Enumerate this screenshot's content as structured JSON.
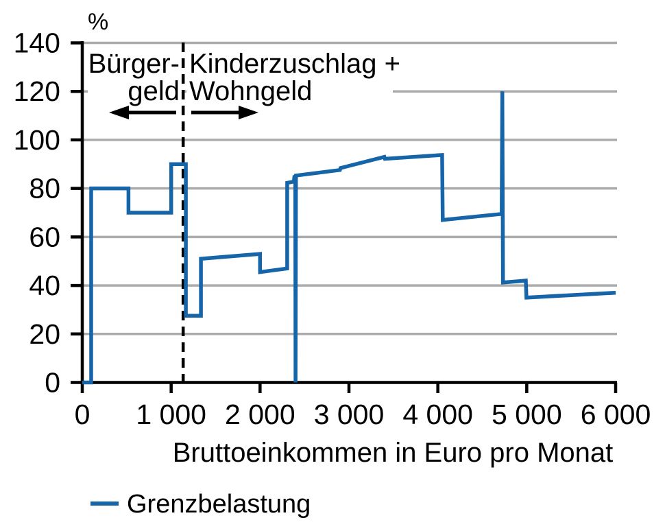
{
  "chart_data": {
    "type": "line",
    "title": "",
    "unit_label": "%",
    "xlabel": "Bruttoeinkommen in Euro pro Monat",
    "ylabel": "%",
    "xlim": [
      0,
      6000
    ],
    "ylim": [
      0,
      140
    ],
    "grid": "horizontal",
    "x_ticks": [
      {
        "value": 0,
        "label": "0"
      },
      {
        "value": 1000,
        "label": "1 000"
      },
      {
        "value": 2000,
        "label": "2 000"
      },
      {
        "value": 3000,
        "label": "3 000"
      },
      {
        "value": 4000,
        "label": "4 000"
      },
      {
        "value": 5000,
        "label": "5 000"
      },
      {
        "value": 6000,
        "label": "6 000"
      }
    ],
    "y_ticks": [
      {
        "value": 0,
        "label": "0"
      },
      {
        "value": 20,
        "label": "20"
      },
      {
        "value": 40,
        "label": "40"
      },
      {
        "value": 60,
        "label": "60"
      },
      {
        "value": 80,
        "label": "80"
      },
      {
        "value": 100,
        "label": "100"
      },
      {
        "value": 120,
        "label": "120"
      },
      {
        "value": 140,
        "label": "140"
      }
    ],
    "annotations": {
      "divider_x_euro": 1135,
      "left_region": {
        "line1": "Bürger-",
        "line2": "geld",
        "arrow": "left"
      },
      "right_region": {
        "line1": "Kinderzuschlag +",
        "line2": "Wohngeld",
        "arrow": "right"
      }
    },
    "legend": [
      {
        "label": "Grenzbelastung",
        "color": "#1565A8"
      }
    ],
    "series": [
      {
        "name": "Grenzbelastung",
        "points": [
          [
            0,
            0
          ],
          [
            100,
            0
          ],
          [
            100,
            80
          ],
          [
            520,
            80
          ],
          [
            520,
            70
          ],
          [
            1000,
            70
          ],
          [
            1000,
            90
          ],
          [
            1165,
            90
          ],
          [
            1165,
            27.5
          ],
          [
            1335,
            27.5
          ],
          [
            1335,
            51
          ],
          [
            2000,
            53
          ],
          [
            2000,
            45.5
          ],
          [
            2305,
            47
          ],
          [
            2305,
            82.3
          ],
          [
            2380,
            82.8
          ],
          [
            2386,
            84.8
          ],
          [
            2396,
            84.9
          ],
          [
            2399,
            0
          ],
          [
            2404,
            85.3
          ],
          [
            2898,
            87.6
          ],
          [
            2905,
            88.4
          ],
          [
            3398,
            93
          ],
          [
            3405,
            92.2
          ],
          [
            4048,
            93.8
          ],
          [
            4055,
            67
          ],
          [
            4718,
            69.5
          ],
          [
            4725,
            120
          ],
          [
            4733,
            41.2
          ],
          [
            4990,
            42
          ],
          [
            4997,
            35
          ],
          [
            6000,
            37
          ]
        ]
      }
    ]
  },
  "colors": {
    "line": "#1565A8",
    "grid": "#ABABAB",
    "axis": "#000000",
    "annotation_divider": "#000000",
    "background": "#ffffff"
  }
}
